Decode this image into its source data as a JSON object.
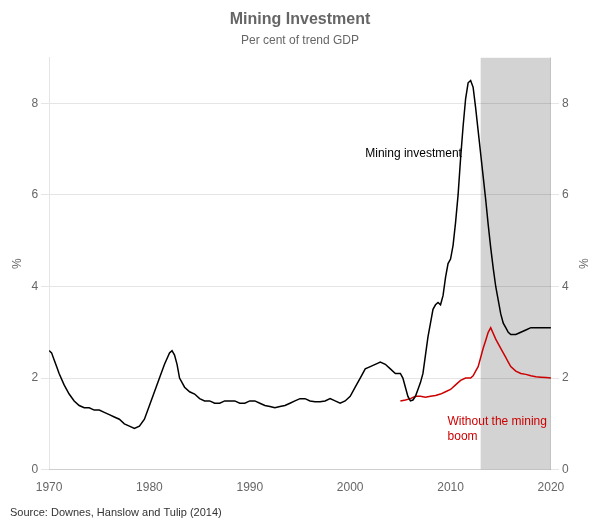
{
  "chart_data": {
    "type": "line",
    "title": "Mining Investment",
    "subtitle": "Per cent of trend GDP",
    "source": "Source: Downes, Hanslow and Tulip (2014)",
    "ylabel": "%",
    "y2label": "%",
    "xlim": [
      1970,
      2020
    ],
    "xticks": [
      1970,
      1980,
      1990,
      2000,
      2010,
      2020
    ],
    "ylim": [
      0,
      9
    ],
    "yticks": [
      0,
      2,
      4,
      6,
      8
    ],
    "y2lim": [
      0,
      9
    ],
    "y2ticks": [
      0,
      2,
      4,
      6,
      8
    ],
    "grid": true,
    "shaded": {
      "x": [
        2013,
        2020
      ],
      "color": "#d3d3d3"
    },
    "annotations": [
      {
        "text": "Mining investment",
        "x": 2001.5,
        "y": 6.9,
        "color": "#000000"
      },
      {
        "text": "Without the mining\nboom",
        "x": 2010.0,
        "y": 1.05,
        "color": "#cc0000"
      }
    ],
    "series": [
      {
        "color": "#000000",
        "x": [
          1970.0,
          1970.25,
          1970.5,
          1970.75,
          1971.0,
          1971.5,
          1972.0,
          1972.5,
          1973.0,
          1973.5,
          1974.0,
          1974.5,
          1975.0,
          1975.5,
          1976.0,
          1976.5,
          1977.0,
          1977.5,
          1978.0,
          1978.5,
          1979.0,
          1979.5,
          1980.0,
          1980.5,
          1981.0,
          1981.5,
          1982.0,
          1982.25,
          1982.5,
          1982.75,
          1983.0,
          1983.5,
          1984.0,
          1984.5,
          1985.0,
          1985.5,
          1986.0,
          1986.5,
          1987.0,
          1987.5,
          1988.0,
          1988.5,
          1989.0,
          1989.5,
          1990.0,
          1990.5,
          1991.0,
          1991.5,
          1992.0,
          1992.5,
          1993.0,
          1993.5,
          1994.0,
          1994.5,
          1995.0,
          1995.5,
          1996.0,
          1996.5,
          1997.0,
          1997.5,
          1998.0,
          1998.5,
          1999.0,
          1999.5,
          2000.0,
          2000.5,
          2001.0,
          2001.5,
          2002.0,
          2002.5,
          2003.0,
          2003.5,
          2004.0,
          2004.5,
          2005.0,
          2005.25,
          2005.5,
          2005.75,
          2006.0,
          2006.25,
          2006.5,
          2006.75,
          2007.0,
          2007.25,
          2007.5,
          2007.75,
          2008.0,
          2008.25,
          2008.5,
          2008.75,
          2009.0,
          2009.25,
          2009.5,
          2009.75,
          2010.0,
          2010.25,
          2010.5,
          2010.75,
          2011.0,
          2011.25,
          2011.5,
          2011.75,
          2012.0,
          2012.25,
          2012.5,
          2012.75,
          2013.0,
          2013.25,
          2013.5,
          2013.75,
          2014.0,
          2014.25,
          2014.5,
          2014.75,
          2015.0,
          2015.25,
          2015.5,
          2015.75,
          2016.0,
          2016.5,
          2017.0,
          2017.5,
          2018.0,
          2018.5,
          2019.0,
          2019.5,
          2020.0
        ],
        "values": [
          2.6,
          2.55,
          2.4,
          2.25,
          2.1,
          1.85,
          1.65,
          1.5,
          1.4,
          1.35,
          1.35,
          1.3,
          1.3,
          1.25,
          1.2,
          1.15,
          1.1,
          1.0,
          0.95,
          0.9,
          0.95,
          1.1,
          1.4,
          1.7,
          2.0,
          2.3,
          2.55,
          2.6,
          2.5,
          2.3,
          2.0,
          1.8,
          1.7,
          1.65,
          1.55,
          1.5,
          1.5,
          1.45,
          1.45,
          1.5,
          1.5,
          1.5,
          1.45,
          1.45,
          1.5,
          1.5,
          1.45,
          1.4,
          1.38,
          1.35,
          1.38,
          1.4,
          1.45,
          1.5,
          1.55,
          1.55,
          1.5,
          1.48,
          1.48,
          1.5,
          1.55,
          1.5,
          1.45,
          1.5,
          1.6,
          1.8,
          2.0,
          2.2,
          2.25,
          2.3,
          2.35,
          2.3,
          2.2,
          2.1,
          2.1,
          2.0,
          1.8,
          1.6,
          1.5,
          1.52,
          1.6,
          1.75,
          1.9,
          2.1,
          2.5,
          2.9,
          3.2,
          3.5,
          3.6,
          3.65,
          3.6,
          3.8,
          4.2,
          4.5,
          4.6,
          4.9,
          5.4,
          6.0,
          6.8,
          7.5,
          8.1,
          8.45,
          8.5,
          8.35,
          7.9,
          7.4,
          6.9,
          6.4,
          5.9,
          5.35,
          4.85,
          4.4,
          4.0,
          3.7,
          3.4,
          3.2,
          3.1,
          3.0,
          2.95,
          2.95,
          3.0,
          3.05,
          3.1,
          3.1,
          3.1,
          3.1,
          3.1
        ]
      },
      {
        "color": "#cc0000",
        "x": [
          2005.0,
          2005.5,
          2006.0,
          2006.5,
          2007.0,
          2007.5,
          2008.0,
          2008.5,
          2009.0,
          2009.5,
          2010.0,
          2010.5,
          2011.0,
          2011.5,
          2012.0,
          2012.25,
          2012.5,
          2012.75,
          2013.0,
          2013.25,
          2013.5,
          2013.75,
          2014.0,
          2014.5,
          2015.0,
          2015.25,
          2015.5,
          2015.75,
          2016.0,
          2016.5,
          2017.0,
          2017.5,
          2018.0,
          2018.5,
          2019.0,
          2019.5,
          2020.0
        ],
        "values": [
          1.5,
          1.52,
          1.55,
          1.6,
          1.6,
          1.58,
          1.6,
          1.62,
          1.65,
          1.7,
          1.75,
          1.85,
          1.95,
          2.0,
          2.0,
          2.05,
          2.15,
          2.25,
          2.45,
          2.65,
          2.82,
          3.0,
          3.1,
          2.85,
          2.65,
          2.55,
          2.45,
          2.35,
          2.25,
          2.15,
          2.1,
          2.08,
          2.05,
          2.03,
          2.02,
          2.01,
          2.0
        ]
      }
    ]
  }
}
